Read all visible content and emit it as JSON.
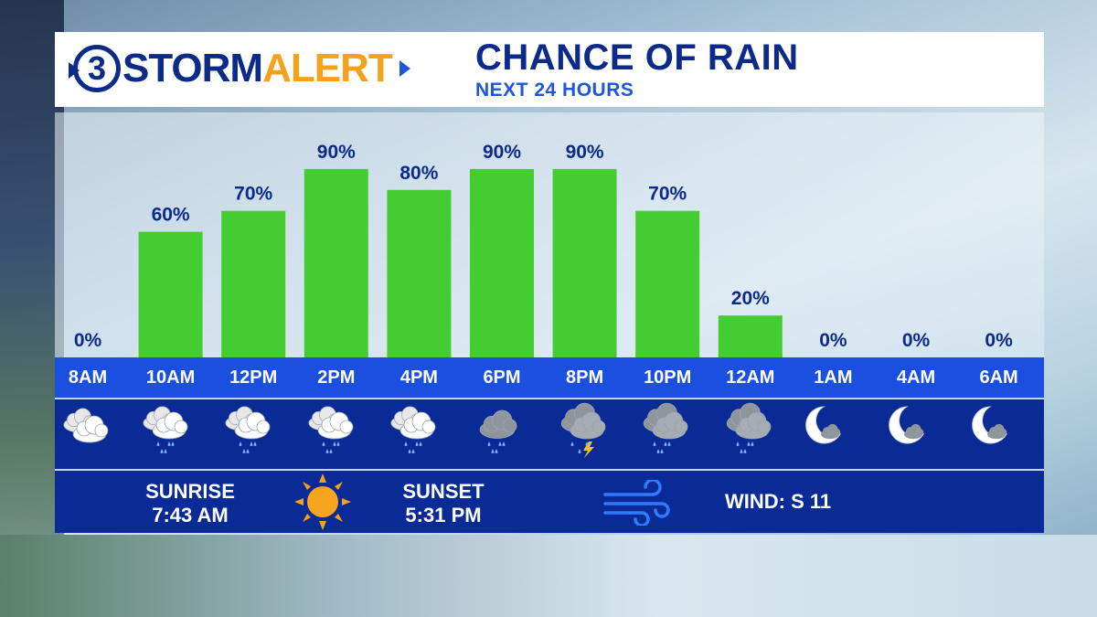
{
  "brand": {
    "logo_number": "3",
    "logo_word1": "STORM",
    "logo_word2": "ALERT"
  },
  "header": {
    "title": "CHANCE OF RAIN",
    "subtitle": "NEXT 24 HOURS"
  },
  "chart_data": {
    "type": "bar",
    "categories": [
      "8AM",
      "10AM",
      "12PM",
      "2PM",
      "4PM",
      "6PM",
      "8PM",
      "10PM",
      "12AM",
      "1AM",
      "4AM",
      "6AM"
    ],
    "values": [
      0,
      60,
      70,
      90,
      80,
      90,
      90,
      70,
      20,
      0,
      0,
      0
    ],
    "value_labels": [
      "0%",
      "60%",
      "70%",
      "90%",
      "80%",
      "90%",
      "90%",
      "70%",
      "20%",
      "0%",
      "0%",
      "0%"
    ],
    "ylim": [
      0,
      100
    ],
    "bar_color": "#44cc33",
    "label_color": "#0b2a8a",
    "grid": false
  },
  "conditions": [
    {
      "icon": "partly-cloudy-icon"
    },
    {
      "icon": "cloud-rain-icon"
    },
    {
      "icon": "cloud-rain-icon"
    },
    {
      "icon": "cloud-rain-icon"
    },
    {
      "icon": "cloud-rain-icon"
    },
    {
      "icon": "dark-cloud-rain-icon"
    },
    {
      "icon": "thunderstorm-icon"
    },
    {
      "icon": "heavy-rain-icon"
    },
    {
      "icon": "heavy-rain-icon"
    },
    {
      "icon": "moon-cloud-icon"
    },
    {
      "icon": "moon-cloud-icon"
    },
    {
      "icon": "moon-cloud-icon"
    }
  ],
  "sun": {
    "sunrise_label": "SUNRISE",
    "sunrise_time": "7:43 AM",
    "sunset_label": "SUNSET",
    "sunset_time": "5:31 PM"
  },
  "wind": {
    "text": "WIND: S 11"
  },
  "colors": {
    "navy": "#0b2a8a",
    "accent_orange": "#f4a11c",
    "time_bar": "#1a4fe0",
    "icon_bar": "#0a2a96"
  }
}
